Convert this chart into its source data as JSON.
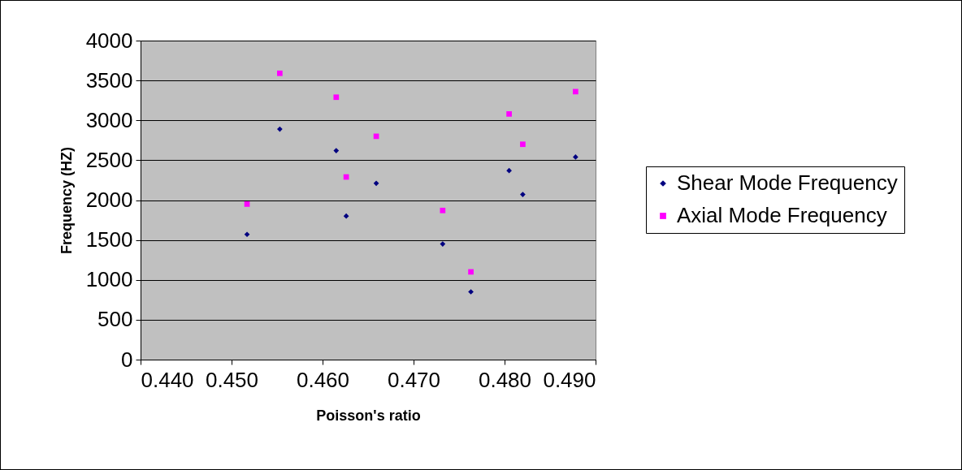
{
  "chart_data": {
    "type": "scatter",
    "xlabel": "Poisson's ratio",
    "ylabel": "Frequency (HZ)",
    "xlim": [
      0.44,
      0.49
    ],
    "xticks": [
      {
        "value": 0.44,
        "label": "0.440"
      },
      {
        "value": 0.45,
        "label": "0.450"
      },
      {
        "value": 0.46,
        "label": "0.460"
      },
      {
        "value": 0.47,
        "label": "0.470"
      },
      {
        "value": 0.48,
        "label": "0.480"
      },
      {
        "value": 0.49,
        "label": "0.490"
      }
    ],
    "ylim": [
      0,
      4000
    ],
    "yticks": [
      0,
      500,
      1000,
      1500,
      2000,
      2500,
      3000,
      3500,
      4000
    ],
    "grid": "y",
    "legend": "right",
    "x": [
      0.4517,
      0.4553,
      0.4615,
      0.4626,
      0.4659,
      0.4732,
      0.4763,
      0.4805,
      0.482,
      0.4878
    ],
    "series": [
      {
        "name": "Shear Mode Frequency",
        "color": "#000080",
        "marker": "diamond",
        "values": [
          1570,
          2890,
          2620,
          1800,
          2210,
          1450,
          850,
          2370,
          2070,
          2540
        ]
      },
      {
        "name": "Axial Mode Frequency",
        "color": "#ff00ff",
        "marker": "square",
        "values": [
          1950,
          3590,
          3290,
          2290,
          2800,
          1870,
          1100,
          3080,
          2700,
          3360
        ]
      }
    ]
  }
}
